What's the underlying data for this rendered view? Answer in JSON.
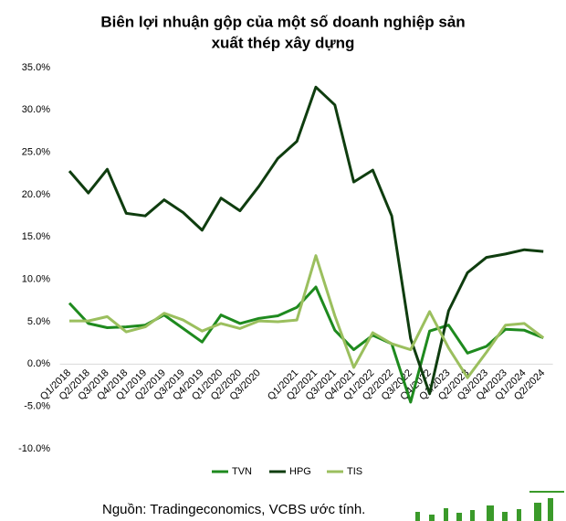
{
  "chart_data": {
    "type": "line",
    "title": "Biên lợi nhuận gộp của một số doanh nghiệp sản",
    "subtitle": "xuất thép xây dựng",
    "source": "Nguồn: Tradingeconomics, VCBS ước tính.",
    "categories": [
      "Q1/2018",
      "Q2/2018",
      "Q3/2018",
      "Q4/2018",
      "Q1/2019",
      "Q2/2019",
      "Q3/2019",
      "Q4/2019",
      "Q1/2020",
      "Q2/2020",
      "Q3/2020",
      null,
      "Q1/2021",
      "Q2/2021",
      "Q3/2021",
      "Q4/2021",
      "Q1/2022",
      "Q2/2022",
      "Q3/2022",
      "Q4/2022",
      "Q1/2023",
      "Q2/2023",
      "Q3/2023",
      "Q4/2023",
      "Q1/2024",
      "Q2/2024"
    ],
    "series": [
      {
        "name": "TVN",
        "color": "#1e8a1e",
        "values": [
          7.2,
          4.8,
          4.3,
          4.4,
          4.6,
          5.8,
          4.2,
          2.6,
          5.8,
          4.8,
          5.4,
          5.7,
          6.7,
          9.1,
          4.0,
          1.7,
          3.4,
          2.4,
          -4.5,
          3.9,
          4.6,
          1.3,
          2.1,
          4.1,
          4.0,
          3.1
        ]
      },
      {
        "name": "HPG",
        "color": "#0f3d0f",
        "values": [
          22.8,
          20.2,
          23.0,
          17.8,
          17.5,
          19.4,
          17.9,
          15.8,
          19.6,
          18.1,
          21.0,
          24.3,
          26.3,
          32.7,
          30.6,
          21.5,
          22.9,
          17.5,
          3.0,
          -3.5,
          6.3,
          10.8,
          12.6,
          13.0,
          13.5,
          13.3
        ]
      },
      {
        "name": "TIS",
        "color": "#9bbf5e",
        "values": [
          5.1,
          5.1,
          5.6,
          3.8,
          4.4,
          6.0,
          5.2,
          3.9,
          4.8,
          4.2,
          5.1,
          5.0,
          5.2,
          12.8,
          5.7,
          -0.4,
          3.7,
          2.4,
          1.7,
          6.2,
          1.9,
          -1.6,
          1.4,
          4.6,
          4.8,
          3.1
        ]
      }
    ],
    "ylim": [
      -10,
      35
    ],
    "yticks": [
      {
        "value": -10,
        "label": "-10.0%"
      },
      {
        "value": -5,
        "label": "-5.0%"
      },
      {
        "value": 0,
        "label": "0.0%"
      },
      {
        "value": 5,
        "label": "5.0%"
      },
      {
        "value": 10,
        "label": "10.0%"
      },
      {
        "value": 15,
        "label": "15.0%"
      },
      {
        "value": 20,
        "label": "20.0%"
      },
      {
        "value": 25,
        "label": "25.0%"
      },
      {
        "value": 30,
        "label": "30.0%"
      },
      {
        "value": 35,
        "label": "35.0%"
      }
    ],
    "legend": "bottom"
  }
}
